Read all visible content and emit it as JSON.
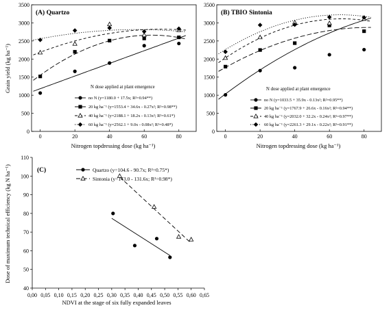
{
  "panels": {
    "A": {
      "title": "(A) Quartzo",
      "ylabel": "Grain yield (kg ha⁻¹)",
      "xlabel": "Nitrogen topdressing dose (kg ha⁻¹)",
      "legend_title": "N dose applied at plant emergence",
      "legend": [
        "no N (y=1180.0 + 17.5x; R²=0.94**)",
        "20 kg ha⁻¹ (y=1553.4 + 34.6x - 0.27x²; R²=0.98**)",
        "40 kg ha⁻¹ (y=2188.1 + 18.2x - 0.13x²; R²=0.61*)",
        "60 kg ha⁻¹ (y=2562.1 + 9.0x - 0.08x²; R²=0.48*)"
      ]
    },
    "B": {
      "title": "(B) TBIO Sintonia",
      "xlabel": "Nitrogen topdressing dose (kg ha⁻¹)",
      "legend_title": "N dose applied at plant emergence",
      "legend": [
        "no N (y=1033.5 + 35.9x - 0.13x²; R²=0.95**)",
        "20 kg ha⁻¹ (y=1767.9 + 26.6x - 0.16x²; R²=0.94**)",
        "40 kg ha⁻¹ (y=2032.0 + 32.2x - 0.24x²; R²=0.97**)",
        "60 kg ha⁻¹ (y=2261.3 + 29.1x - 0.22x²; R²=0.91**)"
      ]
    },
    "C": {
      "title": "(C)",
      "ylabel": "Dose of maximum technical efficiency (kg N ha⁻¹)",
      "xlabel": "NDVI at the stage of six fully expanded leaves",
      "legend": [
        "Quartzo (y=104.6 - 90.7x; R²=0.75*)",
        "Sintonia (y=143.0 - 131.6x; R²=0.98*)"
      ]
    }
  },
  "chart_data": [
    {
      "type": "scatter",
      "panel": "A",
      "title": "(A) Quartzo",
      "xlabel": "Nitrogen topdressing dose (kg ha⁻¹)",
      "ylabel": "Grain yield (kg ha⁻¹)",
      "xlim": [
        -5,
        90
      ],
      "ylim": [
        0,
        3500
      ],
      "xticks": [
        0,
        20,
        40,
        60,
        80
      ],
      "yticks": [
        0,
        500,
        1000,
        1500,
        2000,
        2500,
        3000,
        3500
      ],
      "legend_title": "N dose applied at plant emergence",
      "series": [
        {
          "name": "no N",
          "marker": "circle",
          "line": "solid",
          "x": [
            0,
            20,
            40,
            60,
            80
          ],
          "y": [
            1060,
            1660,
            1890,
            2370,
            2430
          ],
          "fit": [
            1180.0,
            17.5,
            0
          ]
        },
        {
          "name": "20 kg ha⁻¹",
          "marker": "square",
          "line": "longdash",
          "x": [
            0,
            20,
            40,
            60,
            80
          ],
          "y": [
            1520,
            2200,
            2510,
            2570,
            2600
          ],
          "fit": [
            1553.4,
            34.6,
            -0.27
          ]
        },
        {
          "name": "40 kg ha⁻¹",
          "marker": "triangle",
          "line": "shortdash",
          "x": [
            0,
            20,
            40,
            60,
            80
          ],
          "y": [
            2180,
            2420,
            2960,
            2660,
            2800
          ],
          "fit": [
            2188.1,
            18.2,
            -0.13
          ]
        },
        {
          "name": "60 kg ha⁻¹",
          "marker": "diamond",
          "line": "dotted",
          "x": [
            0,
            20,
            40,
            60,
            80
          ],
          "y": [
            2530,
            2790,
            2860,
            2760,
            2840
          ],
          "fit": [
            2562.1,
            9.0,
            -0.08
          ]
        }
      ]
    },
    {
      "type": "scatter",
      "panel": "B",
      "title": "(B) TBIO Sintonia",
      "xlabel": "Nitrogen topdressing dose (kg ha⁻¹)",
      "xlim": [
        -5,
        90
      ],
      "ylim": [
        0,
        3500
      ],
      "xticks": [
        0,
        20,
        40,
        60,
        80
      ],
      "yticks": [
        0,
        500,
        1000,
        1500,
        2000,
        2500,
        3000,
        3500
      ],
      "legend_title": "N dose applied at plant emergence",
      "series": [
        {
          "name": "no N",
          "marker": "circle",
          "line": "solid",
          "x": [
            0,
            20,
            40,
            60,
            80
          ],
          "y": [
            1010,
            1680,
            1760,
            2120,
            2260
          ],
          "fit": [
            1033.5,
            35.9,
            -0.13
          ]
        },
        {
          "name": "20 kg ha⁻¹",
          "marker": "square",
          "line": "longdash",
          "x": [
            0,
            20,
            40,
            60,
            80
          ],
          "y": [
            1790,
            2250,
            2440,
            2930,
            2770
          ],
          "fit": [
            1767.9,
            26.6,
            -0.16
          ]
        },
        {
          "name": "40 kg ha⁻¹",
          "marker": "triangle",
          "line": "shortdash",
          "x": [
            0,
            20,
            40,
            60,
            80
          ],
          "y": [
            2030,
            2600,
            3010,
            2990,
            3110
          ],
          "fit": [
            2032.0,
            32.2,
            -0.24
          ]
        },
        {
          "name": "60 kg ha⁻¹",
          "marker": "diamond",
          "line": "dotted",
          "x": [
            0,
            20,
            40,
            60,
            80
          ],
          "y": [
            2200,
            2940,
            2950,
            3160,
            3150
          ],
          "fit": [
            2261.3,
            29.1,
            -0.22
          ]
        }
      ]
    },
    {
      "type": "scatter",
      "panel": "C",
      "title": "(C)",
      "xlabel": "NDVI at the stage of six fully expanded leaves",
      "ylabel": "Dose of maximum technical efficiency (kg N ha⁻¹)",
      "xlim": [
        0.0,
        0.65
      ],
      "ylim": [
        40,
        110
      ],
      "xticks": [
        0.0,
        0.05,
        0.1,
        0.15,
        0.2,
        0.25,
        0.3,
        0.35,
        0.4,
        0.45,
        0.5,
        0.55,
        0.6,
        0.65
      ],
      "xticklabels": [
        "0,00",
        "0,05",
        "0,10",
        "0,15",
        "0,20",
        "0,25",
        "0,30",
        "0,35",
        "0,40",
        "0,45",
        "0,50",
        "0,55",
        "0,60",
        "0,65"
      ],
      "yticks": [
        40,
        50,
        60,
        70,
        80,
        90,
        100,
        110
      ],
      "series": [
        {
          "name": "Quartzo",
          "marker": "circle",
          "line": "solid",
          "x": [
            0.305,
            0.387,
            0.47,
            0.52
          ],
          "y": [
            80.0,
            62.8,
            66.5,
            56.5
          ],
          "fit": [
            104.6,
            -90.7
          ],
          "fit_x": [
            0.3,
            0.52
          ]
        },
        {
          "name": "Sintonia",
          "marker": "triangle",
          "line": "dashed",
          "x": [
            0.33,
            0.46,
            0.553,
            0.6
          ],
          "y": [
            100.0,
            83.5,
            67.5,
            66.0
          ],
          "fit": [
            143.0,
            -131.6
          ],
          "fit_x": [
            0.33,
            0.6
          ]
        }
      ]
    }
  ]
}
